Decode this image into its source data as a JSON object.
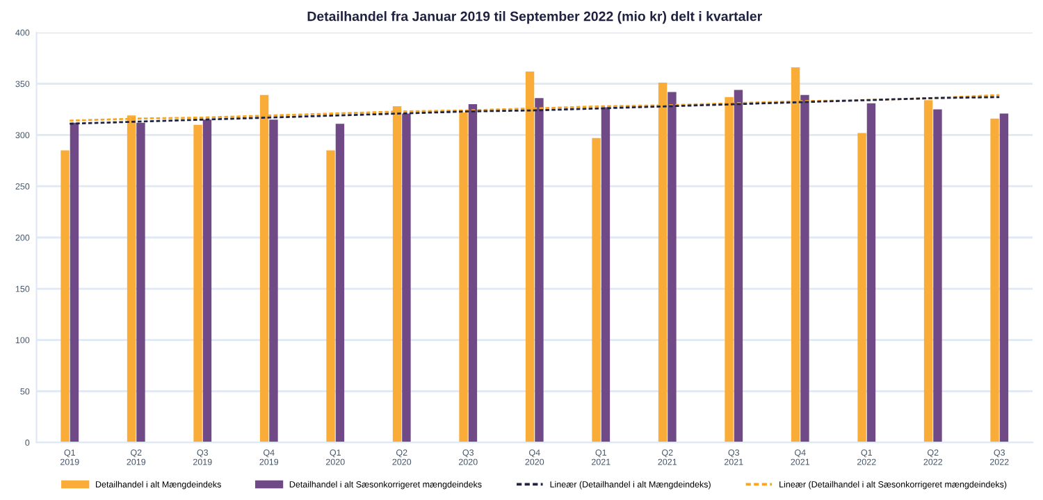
{
  "chart_data": {
    "type": "bar",
    "title": "Detailhandel fra Januar 2019 til September 2022 (mio kr) delt i kvartaler",
    "categories": [
      "Q1\n2019",
      "Q2\n2019",
      "Q3\n2019",
      "Q4\n2019",
      "Q1\n2020",
      "Q2\n2020",
      "Q3\n2020",
      "Q4\n2020",
      "Q1\n2021",
      "Q2\n2021",
      "Q3\n2021",
      "Q4\n2021",
      "Q1\n2022",
      "Q2\n2022",
      "Q3\n2022"
    ],
    "series": [
      {
        "name": "Detailhandel i alt Mængdeindeks",
        "color": "#f9ad38",
        "values": [
          285,
          319,
          310,
          339,
          285,
          328,
          322,
          362,
          297,
          351,
          337,
          366,
          302,
          334,
          316
        ]
      },
      {
        "name": "Detailhandel i alt Sæsonkorrigeret mængdeindeks",
        "color": "#6f4a87",
        "values": [
          312,
          312,
          315,
          315,
          311,
          321,
          330,
          336,
          327,
          342,
          344,
          339,
          331,
          325,
          321
        ]
      },
      {
        "name": "Lineær (Detailhandel i alt Mængdeindeks)",
        "type": "line",
        "line_style": "dashed",
        "color": "#1f2340",
        "values": [
          311,
          313,
          315,
          317,
          319,
          321,
          323,
          324,
          326,
          328,
          330,
          332,
          334,
          336,
          337
        ]
      },
      {
        "name": "Lineær (Detailhandel i alt Sæsonkorrigeret mængdeindeks)",
        "type": "line",
        "line_style": "dashed",
        "color": "#f6a623",
        "values": [
          314,
          316,
          317,
          319,
          321,
          323,
          324,
          326,
          328,
          329,
          331,
          333,
          334,
          336,
          339
        ]
      }
    ],
    "ylim": [
      0,
      400
    ],
    "yticks": [
      0,
      50,
      100,
      150,
      200,
      250,
      300,
      350,
      400
    ],
    "grid": "y",
    "legend": "bottom"
  }
}
